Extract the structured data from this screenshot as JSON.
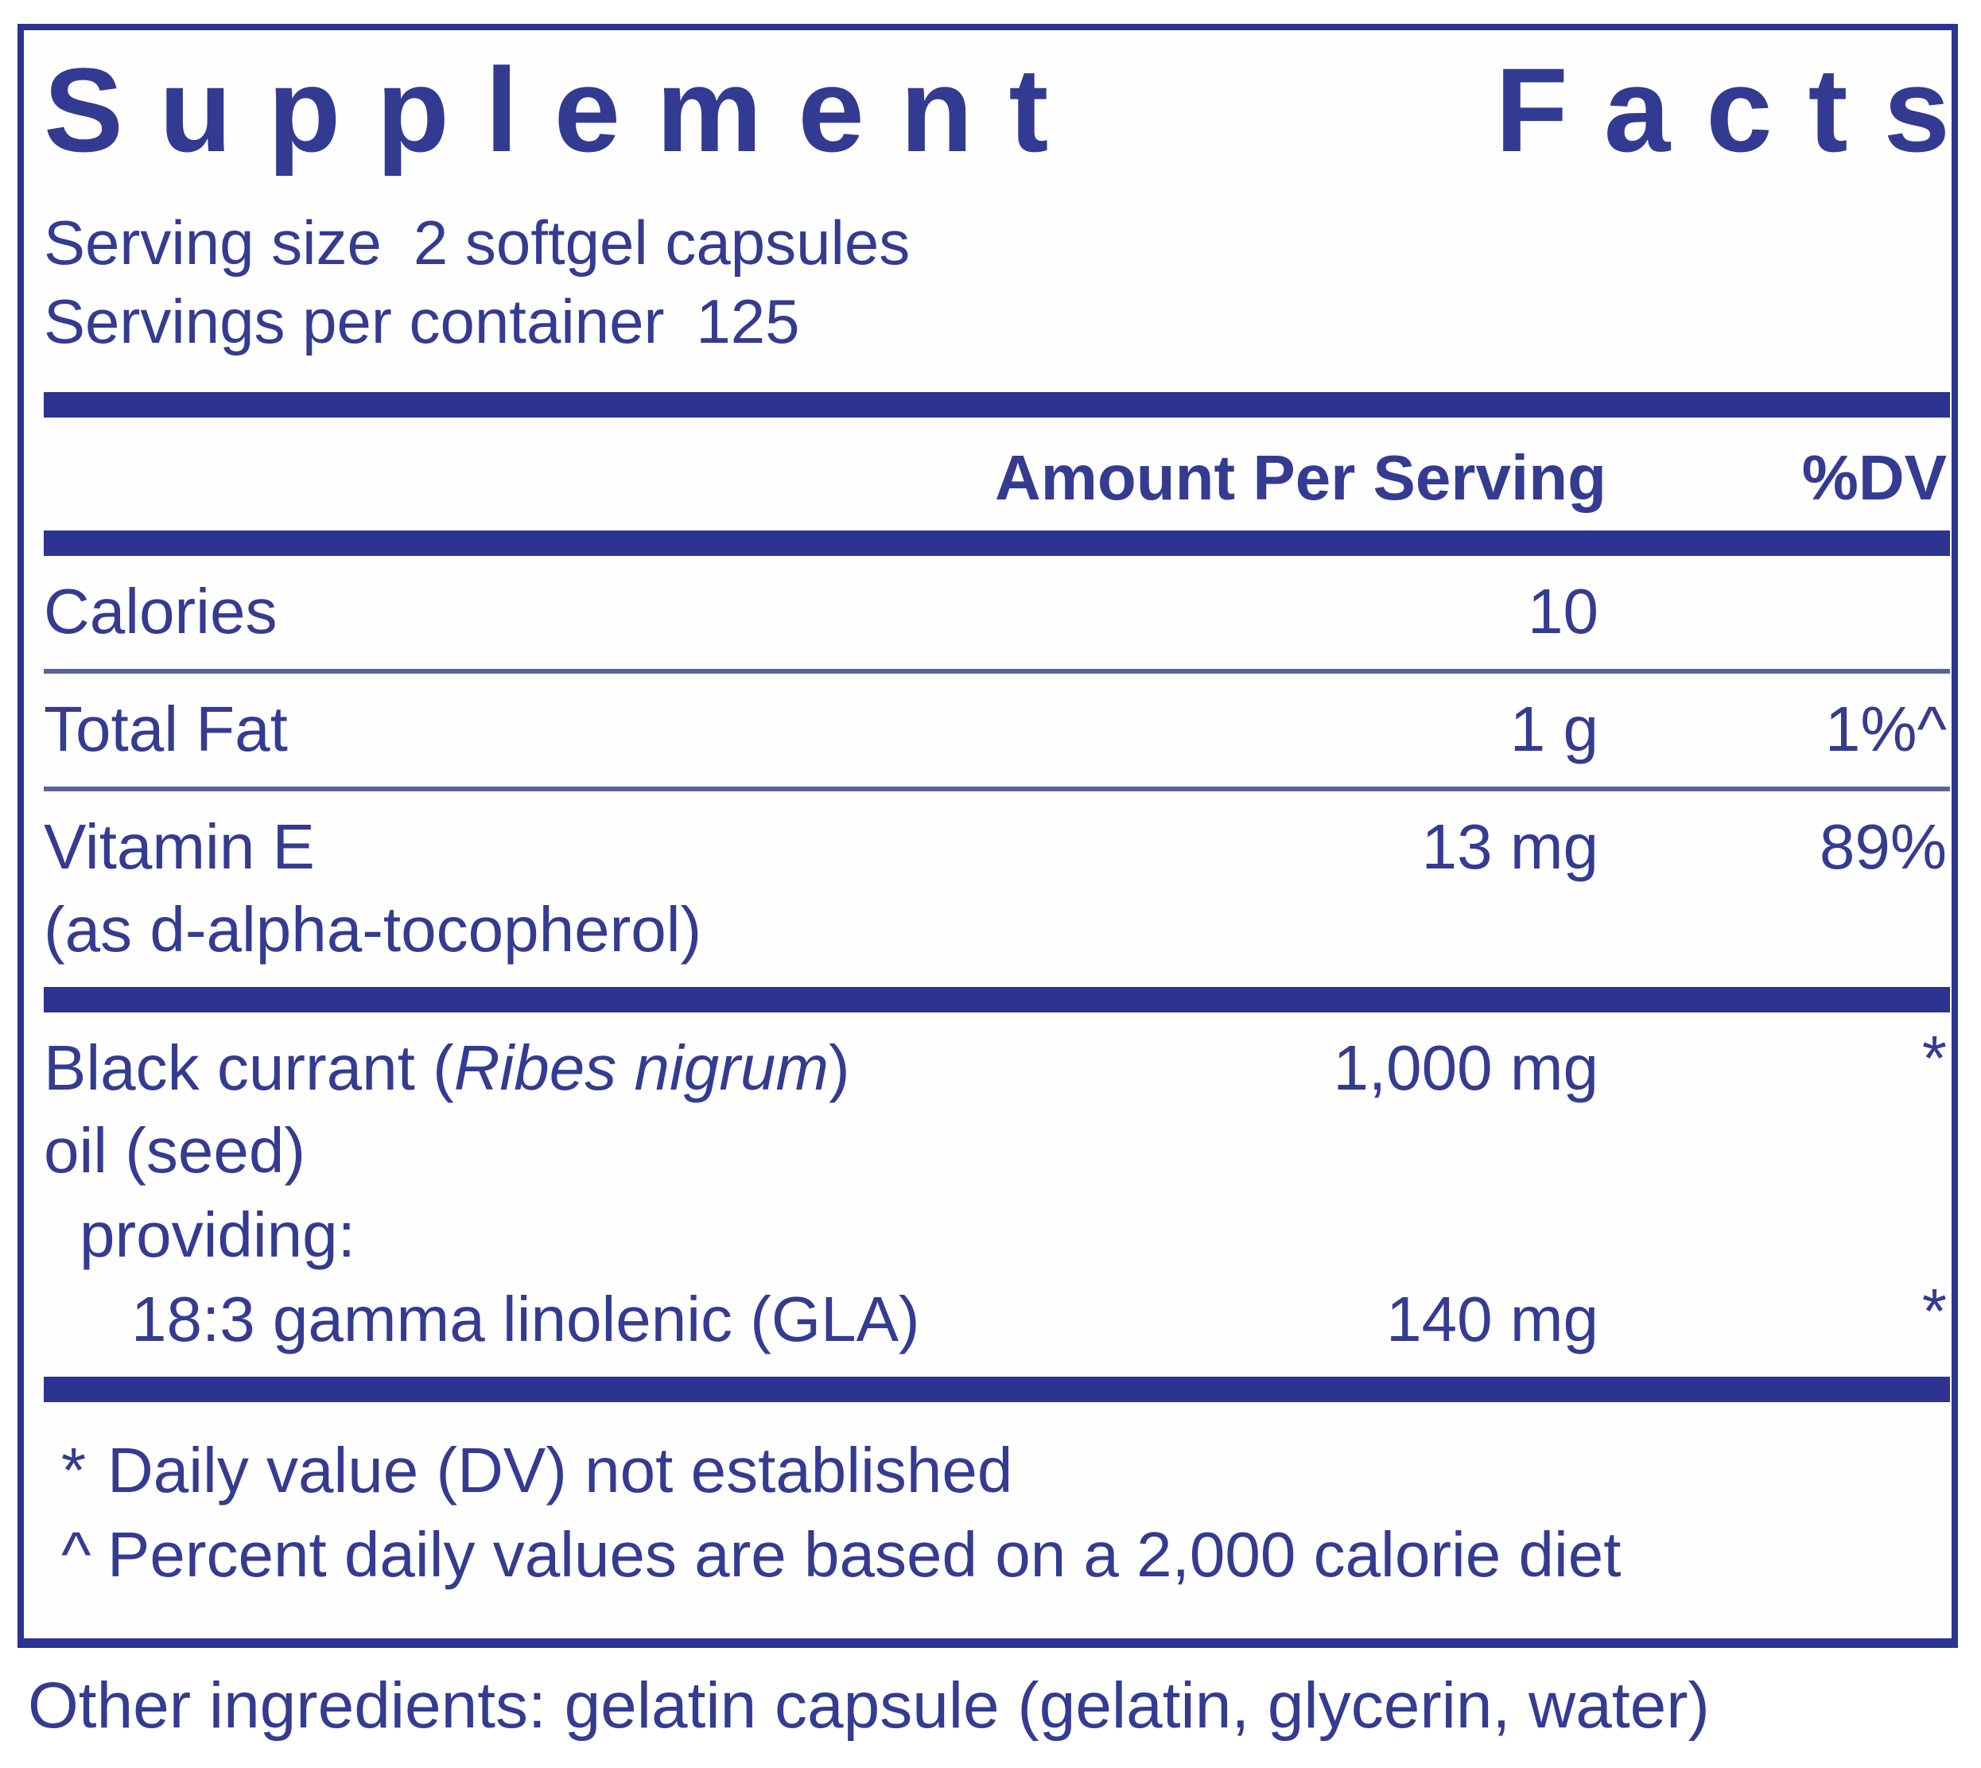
{
  "title": "Supplement Facts",
  "title_word1": "Supplement",
  "title_word2": "Facts",
  "serving_info": {
    "serving_size_label": "Serving size",
    "serving_size_value": "2 softgel capsules",
    "servings_per_container_label": "Servings per container",
    "servings_per_container_value": "125"
  },
  "table": {
    "header": {
      "amount": "Amount Per Serving",
      "dv": "%DV"
    },
    "rows": [
      {
        "name": "Calories",
        "amount": "10",
        "dv": ""
      },
      {
        "name": "Total Fat",
        "amount": "1 g",
        "dv": "1%^"
      },
      {
        "name": "Vitamin E",
        "name_line2": "(as d-alpha-tocopherol)",
        "amount": "13 mg",
        "dv": "89%"
      },
      {
        "name_prefix": "Black currant (",
        "name_italic": "Ribes nigrum",
        "name_suffix": ")",
        "name_line2": "oil (seed)",
        "sub_label": "providing:",
        "amount": "1,000 mg",
        "dv": "*"
      },
      {
        "name": "18:3 gamma linolenic (GLA)",
        "amount": "140 mg",
        "dv": "*"
      }
    ]
  },
  "footnotes": [
    {
      "marker": "*",
      "text": "Daily value (DV) not established"
    },
    {
      "marker": "^",
      "text": "Percent daily values are based on a 2,000 calorie diet"
    }
  ],
  "other_ingredients": "Other ingredients: gelatin capsule (gelatin, glycerin, water)",
  "colors": {
    "navy_bar": "#2c3390",
    "text_navy": "#343b91",
    "divider": "#5b619e",
    "background": "#ffffff"
  }
}
